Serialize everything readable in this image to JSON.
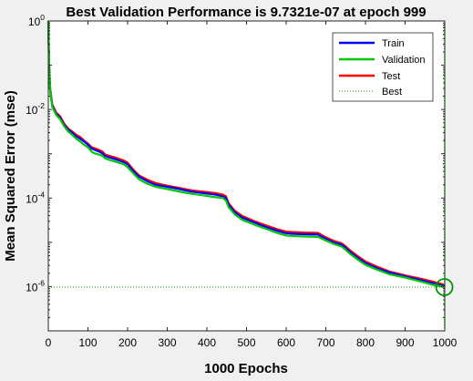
{
  "chart_data": {
    "type": "line",
    "title": "Best Validation Performance is 9.7321e-07 at epoch 999",
    "xlabel": "1000 Epochs",
    "ylabel": "Mean Squared Error  (mse)",
    "xlim": [
      0,
      1000
    ],
    "ylim": [
      1e-07,
      1
    ],
    "yscale": "log",
    "grid": false,
    "legend_location": "top-right",
    "x_ticks": [
      "0",
      "100",
      "200",
      "300",
      "400",
      "500",
      "600",
      "700",
      "800",
      "900",
      "1000"
    ],
    "y_ticks": [
      {
        "base": "10",
        "exp": "0",
        "value": 1
      },
      {
        "base": "10",
        "exp": "-2",
        "value": 0.01
      },
      {
        "base": "10",
        "exp": "-4",
        "value": 0.0001
      },
      {
        "base": "10",
        "exp": "-6",
        "value": 1e-06
      }
    ],
    "x": [
      0,
      2,
      5,
      10,
      20,
      30,
      40,
      50,
      60,
      70,
      80,
      90,
      100,
      110,
      120,
      130,
      138,
      142,
      150,
      160,
      170,
      180,
      190,
      200,
      210,
      220,
      230,
      250,
      270,
      300,
      330,
      360,
      390,
      420,
      440,
      448,
      455,
      470,
      490,
      520,
      550,
      580,
      600,
      620,
      650,
      680,
      700,
      720,
      740,
      750,
      760,
      780,
      800,
      830,
      860,
      900,
      940,
      970,
      999
    ],
    "series": [
      {
        "name": "Train",
        "color": "#0000ff",
        "values": [
          1,
          0.1,
          0.025,
          0.012,
          0.008,
          0.0065,
          0.0045,
          0.0035,
          0.003,
          0.0025,
          0.0022,
          0.0019,
          0.0016,
          0.0013,
          0.0012,
          0.0011,
          0.001,
          0.0009,
          0.00085,
          0.0008,
          0.00075,
          0.0007,
          0.00065,
          0.00058,
          0.00045,
          0.00036,
          0.0003,
          0.00024,
          0.0002,
          0.00018,
          0.00016,
          0.00014,
          0.00013,
          0.00012,
          0.00011,
          0.0001,
          7e-05,
          4.8e-05,
          3.6e-05,
          2.8e-05,
          2.2e-05,
          1.8e-05,
          1.6e-05,
          1.55e-05,
          1.52e-05,
          1.5e-05,
          1.2e-05,
          1e-05,
          8.8e-06,
          7.5e-06,
          6.2e-06,
          4.5e-06,
          3.4e-06,
          2.6e-06,
          2.1e-06,
          1.7e-06,
          1.4e-06,
          1.2e-06,
          1.02e-06
        ]
      },
      {
        "name": "Validation",
        "color": "#00c800",
        "values": [
          1,
          0.095,
          0.024,
          0.0115,
          0.0075,
          0.006,
          0.0042,
          0.0032,
          0.0027,
          0.0022,
          0.0019,
          0.0016,
          0.0014,
          0.0011,
          0.001,
          0.00095,
          0.00088,
          0.0008,
          0.00075,
          0.0007,
          0.00066,
          0.00062,
          0.00058,
          0.0005,
          0.0004,
          0.00032,
          0.00026,
          0.00021,
          0.00018,
          0.00016,
          0.00014,
          0.000125,
          0.000115,
          0.000105,
          0.0001,
          8.8e-05,
          6.2e-05,
          4.3e-05,
          3.2e-05,
          2.5e-05,
          2e-05,
          1.6e-05,
          1.42e-05,
          1.38e-05,
          1.35e-05,
          1.33e-05,
          1.1e-05,
          9.2e-06,
          8e-06,
          6.8e-06,
          5.6e-06,
          4.1e-06,
          3.1e-06,
          2.4e-06,
          1.9e-06,
          1.6e-06,
          1.3e-06,
          1.1e-06,
          9.7321e-07
        ]
      },
      {
        "name": "Test",
        "color": "#ff0000",
        "values": [
          1,
          0.11,
          0.028,
          0.013,
          0.0085,
          0.007,
          0.0048,
          0.0037,
          0.0032,
          0.0027,
          0.0024,
          0.002,
          0.0017,
          0.0014,
          0.0013,
          0.0012,
          0.0011,
          0.00098,
          0.00092,
          0.00087,
          0.00082,
          0.00076,
          0.00071,
          0.00063,
          0.00049,
          0.00039,
          0.00032,
          0.00026,
          0.00022,
          0.00019,
          0.00017,
          0.00015,
          0.00014,
          0.00013,
          0.00012,
          0.00011,
          7.6e-05,
          5.2e-05,
          3.9e-05,
          3e-05,
          2.4e-05,
          1.95e-05,
          1.75e-05,
          1.7e-05,
          1.66e-05,
          1.64e-05,
          1.3e-05,
          1.08e-05,
          9.5e-06,
          8.1e-06,
          6.7e-06,
          4.9e-06,
          3.7e-06,
          2.8e-06,
          2.2e-06,
          1.8e-06,
          1.5e-06,
          1.3e-06,
          1.1e-06
        ]
      }
    ],
    "best": {
      "name": "Best",
      "epoch": 999,
      "value": 9.7321e-07,
      "line_color": "#009600",
      "marker_color": "#009600"
    }
  }
}
